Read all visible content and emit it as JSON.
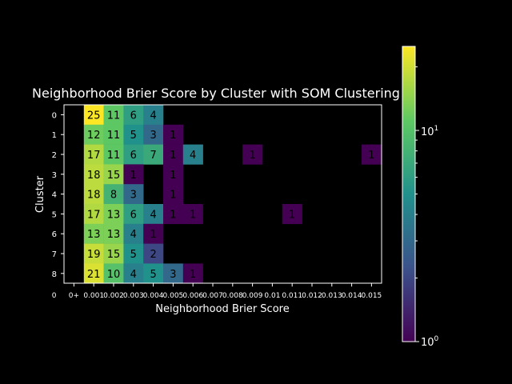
{
  "chart_data": {
    "type": "heatmap",
    "title": "Neighborhood Brier Score by Cluster with SOM Clustering",
    "xlabel": "Neighborhood Brier Score",
    "ylabel": "Cluster",
    "x_tick_labels": [
      "0",
      "0+",
      "0.001",
      "0.002",
      "0.003",
      "0.004",
      "0.005",
      "0.006",
      "0.007",
      "0.008",
      "0.009",
      "0.01",
      "0.011",
      "0.012",
      "0.013",
      "0.014",
      "0.015"
    ],
    "y_tick_labels": [
      "0",
      "1",
      "2",
      "3",
      "4",
      "5",
      "6",
      "7",
      "8"
    ],
    "colorbar": {
      "scale": "log",
      "min": 1,
      "max": 25,
      "labels": [
        "10^0",
        "10^1"
      ]
    },
    "colormap": [
      "#440154",
      "#3b528b",
      "#21918c",
      "#5ec962",
      "#fde725"
    ],
    "grid": false,
    "cells": [
      {
        "cluster": 0,
        "bin": 1,
        "value": 25
      },
      {
        "cluster": 0,
        "bin": 2,
        "value": 11
      },
      {
        "cluster": 0,
        "bin": 3,
        "value": 6
      },
      {
        "cluster": 0,
        "bin": 4,
        "value": 4
      },
      {
        "cluster": 1,
        "bin": 1,
        "value": 12
      },
      {
        "cluster": 1,
        "bin": 2,
        "value": 11
      },
      {
        "cluster": 1,
        "bin": 3,
        "value": 5
      },
      {
        "cluster": 1,
        "bin": 4,
        "value": 3
      },
      {
        "cluster": 1,
        "bin": 5,
        "value": 1
      },
      {
        "cluster": 2,
        "bin": 1,
        "value": 17
      },
      {
        "cluster": 2,
        "bin": 2,
        "value": 11
      },
      {
        "cluster": 2,
        "bin": 3,
        "value": 6
      },
      {
        "cluster": 2,
        "bin": 4,
        "value": 7
      },
      {
        "cluster": 2,
        "bin": 5,
        "value": 1
      },
      {
        "cluster": 2,
        "bin": 6,
        "value": 4
      },
      {
        "cluster": 2,
        "bin": 9,
        "value": 1
      },
      {
        "cluster": 2,
        "bin": 15,
        "value": 1
      },
      {
        "cluster": 3,
        "bin": 1,
        "value": 18
      },
      {
        "cluster": 3,
        "bin": 2,
        "value": 15
      },
      {
        "cluster": 3,
        "bin": 3,
        "value": 1
      },
      {
        "cluster": 3,
        "bin": 5,
        "value": 1
      },
      {
        "cluster": 4,
        "bin": 1,
        "value": 18
      },
      {
        "cluster": 4,
        "bin": 2,
        "value": 8
      },
      {
        "cluster": 4,
        "bin": 3,
        "value": 3
      },
      {
        "cluster": 4,
        "bin": 5,
        "value": 1
      },
      {
        "cluster": 5,
        "bin": 1,
        "value": 17
      },
      {
        "cluster": 5,
        "bin": 2,
        "value": 13
      },
      {
        "cluster": 5,
        "bin": 3,
        "value": 6
      },
      {
        "cluster": 5,
        "bin": 4,
        "value": 4
      },
      {
        "cluster": 5,
        "bin": 5,
        "value": 1
      },
      {
        "cluster": 5,
        "bin": 6,
        "value": 1
      },
      {
        "cluster": 5,
        "bin": 11,
        "value": 1
      },
      {
        "cluster": 6,
        "bin": 1,
        "value": 13
      },
      {
        "cluster": 6,
        "bin": 2,
        "value": 13
      },
      {
        "cluster": 6,
        "bin": 3,
        "value": 4
      },
      {
        "cluster": 6,
        "bin": 4,
        "value": 1
      },
      {
        "cluster": 7,
        "bin": 1,
        "value": 19
      },
      {
        "cluster": 7,
        "bin": 2,
        "value": 15
      },
      {
        "cluster": 7,
        "bin": 3,
        "value": 5
      },
      {
        "cluster": 7,
        "bin": 4,
        "value": 2
      },
      {
        "cluster": 8,
        "bin": 1,
        "value": 21
      },
      {
        "cluster": 8,
        "bin": 2,
        "value": 10
      },
      {
        "cluster": 8,
        "bin": 3,
        "value": 4
      },
      {
        "cluster": 8,
        "bin": 4,
        "value": 5
      },
      {
        "cluster": 8,
        "bin": 5,
        "value": 3
      },
      {
        "cluster": 8,
        "bin": 6,
        "value": 1
      }
    ]
  }
}
